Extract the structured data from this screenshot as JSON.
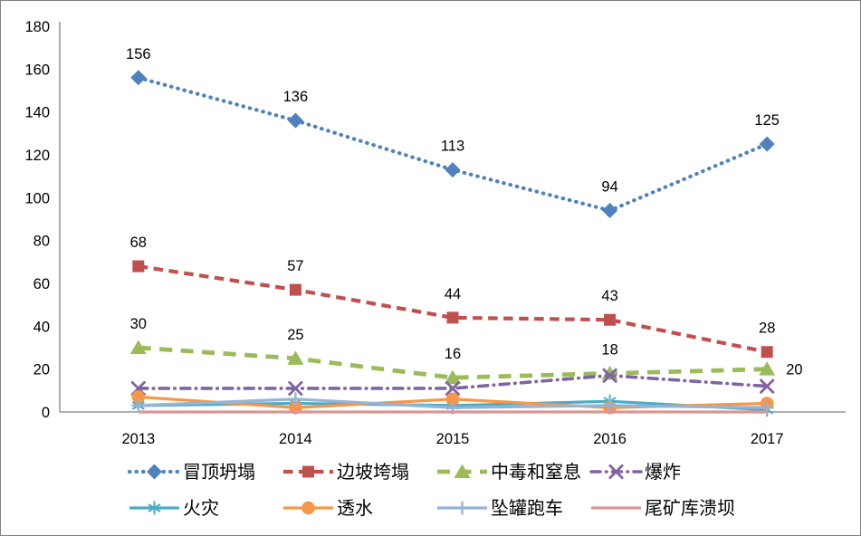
{
  "chart_data": {
    "type": "line",
    "title": "",
    "categories": [
      "2013",
      "2014",
      "2015",
      "2016",
      "2017"
    ],
    "y_ticks": [
      0,
      20,
      40,
      60,
      80,
      100,
      120,
      140,
      160,
      180
    ],
    "ylim": [
      0,
      180
    ],
    "grid": false,
    "legend_position": "bottom",
    "axis_color": "#808080",
    "text_color": "#000000",
    "series": [
      {
        "name": "冒顶坍塌",
        "color": "#4F81BD",
        "line_style": "dotted",
        "marker": "diamond",
        "values": [
          156,
          136,
          113,
          94,
          125
        ],
        "data_labels": true,
        "label_last_right": false
      },
      {
        "name": "边坡垮塌",
        "color": "#C0504D",
        "line_style": "dashed",
        "marker": "square",
        "values": [
          68,
          57,
          44,
          43,
          28
        ],
        "data_labels": true,
        "label_last_right": false
      },
      {
        "name": "中毒和窒息",
        "color": "#9BBB59",
        "line_style": "long-dash",
        "marker": "triangle",
        "values": [
          30,
          25,
          16,
          18,
          20
        ],
        "data_labels": true,
        "label_last_right": true
      },
      {
        "name": "爆炸",
        "color": "#8064A2",
        "line_style": "dash-dot",
        "marker": "x",
        "values": [
          11,
          11,
          11,
          17,
          12
        ],
        "data_labels": false,
        "label_last_right": false
      },
      {
        "name": "火灾",
        "color": "#4BACC6",
        "line_style": "solid",
        "marker": "asterisk",
        "values": [
          3,
          4,
          3,
          5,
          1
        ],
        "data_labels": false,
        "label_last_right": false
      },
      {
        "name": "透水",
        "color": "#F79646",
        "line_style": "solid",
        "marker": "circle",
        "values": [
          7,
          2,
          6,
          2,
          4
        ],
        "data_labels": false,
        "label_last_right": false
      },
      {
        "name": "坠罐跑车",
        "color": "#95B3D7",
        "line_style": "solid",
        "marker": "plus",
        "values": [
          3,
          6,
          2,
          3,
          2
        ],
        "data_labels": false,
        "label_last_right": false
      },
      {
        "name": "尾矿库溃坝",
        "color": "#D99694",
        "line_style": "solid",
        "marker": "none",
        "values": [
          0,
          0,
          0,
          0,
          0
        ],
        "data_labels": false,
        "label_last_right": false
      }
    ]
  }
}
